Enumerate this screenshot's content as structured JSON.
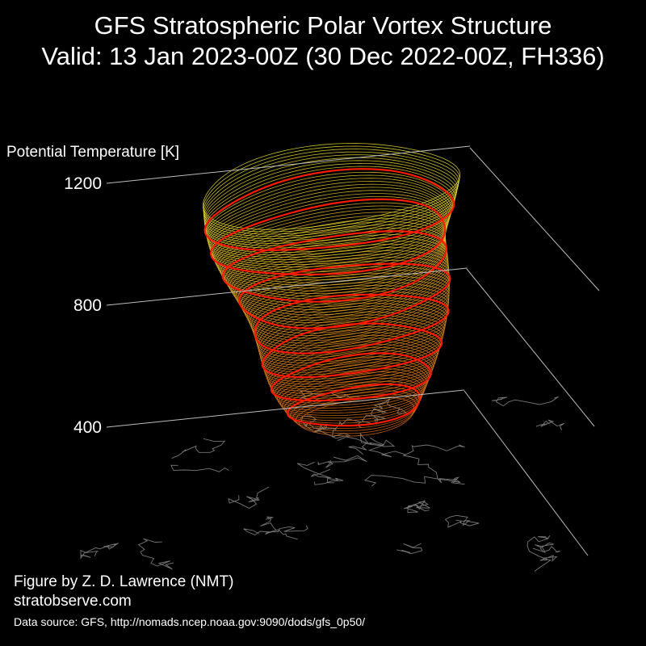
{
  "header": {
    "title": "GFS Stratospheric Polar Vortex Structure",
    "subtitle": "Valid: 13 Jan 2023-00Z  (30 Dec 2022-00Z, FH336)"
  },
  "chart_data": {
    "type": "3d-isosurface",
    "zlabel": "Potential Temperature [K]",
    "z_ticks": [
      400,
      800,
      1200
    ],
    "z_tick_labels": [
      "400",
      "800",
      "1200"
    ],
    "highlighted_levels": [
      400,
      500,
      600,
      700,
      800,
      900,
      1000,
      1100
    ],
    "colors": {
      "background": "#000000",
      "highlight_contours": "#ff1a00",
      "low_levels": "#e06a10",
      "mid_levels": "#d8901c",
      "high_levels": "#e8e030",
      "coastline": "#777777",
      "axis_lines": "#bbbbbb"
    }
  },
  "footer": {
    "credit": "Figure by Z. D. Lawrence (NMT)",
    "website": "stratobserve.com",
    "data_source": "Data source: GFS, http://nomads.ncep.noaa.gov:9090/dods/gfs_0p50/"
  }
}
